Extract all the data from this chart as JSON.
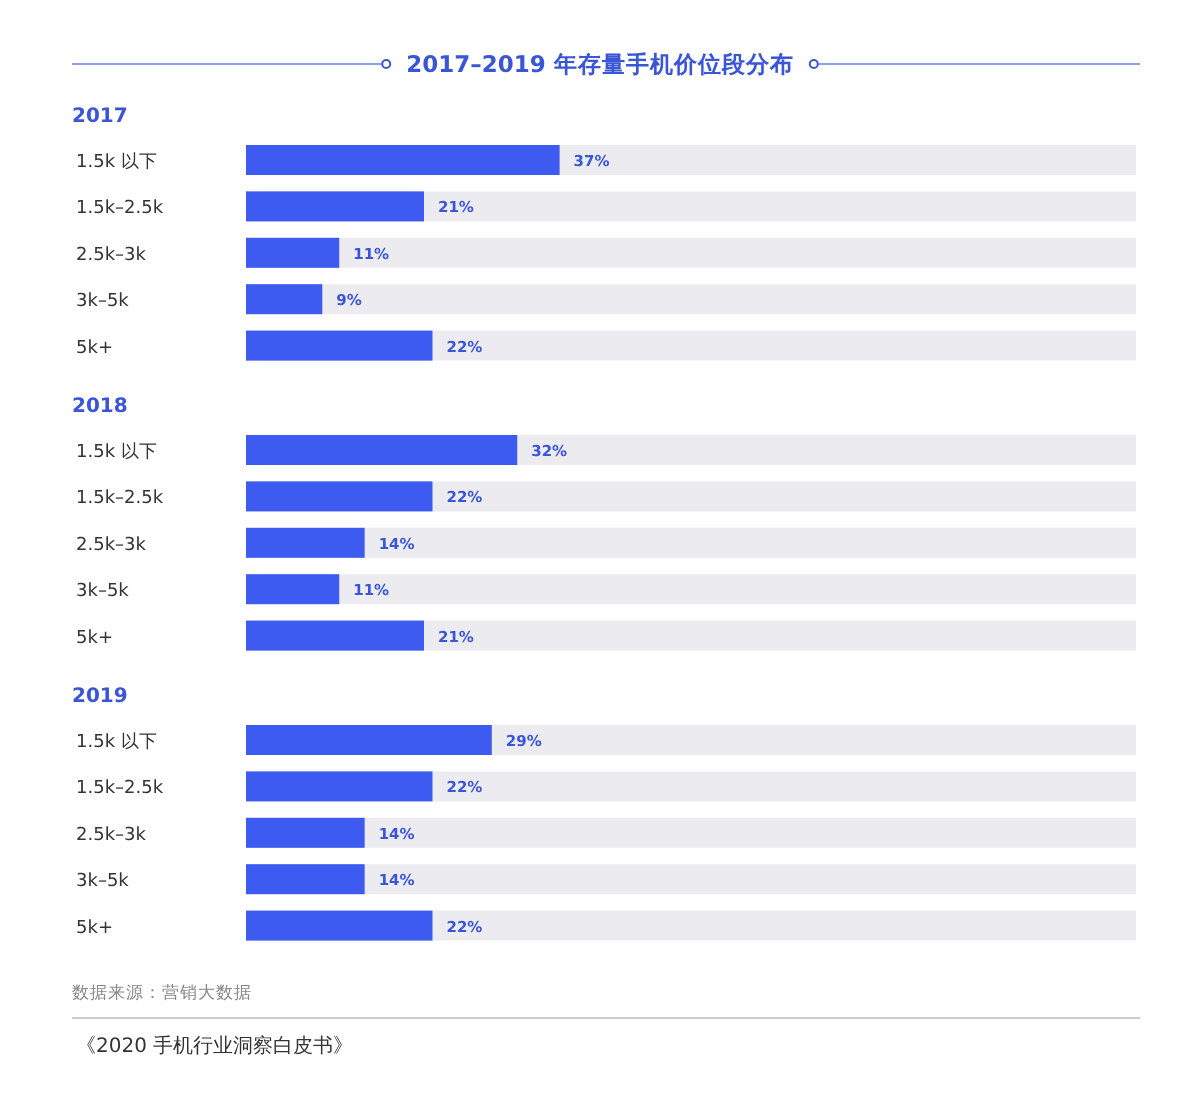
{
  "chart_data": [
    {
      "type": "bar",
      "orientation": "horizontal",
      "title": "2017–2019 年存量手机价位段分布",
      "subtitle": "2017",
      "categories": [
        "1.5k 以下",
        "1.5k–2.5k",
        "2.5k–3k",
        "3k–5k",
        "5k+"
      ],
      "values": [
        37,
        21,
        11,
        9,
        22
      ],
      "value_labels": [
        "37%",
        "21%",
        "11%",
        "9%",
        "22%"
      ],
      "color": "#3d5af1"
    },
    {
      "type": "bar",
      "orientation": "horizontal",
      "subtitle": "2018",
      "categories": [
        "1.5k 以下",
        "1.5k–2.5k",
        "2.5k–3k",
        "3k–5k",
        "5k+"
      ],
      "values": [
        32,
        22,
        14,
        11,
        21
      ],
      "value_labels": [
        "32%",
        "22%",
        "14%",
        "11%",
        "21%"
      ],
      "color": "#3d5af1"
    },
    {
      "type": "bar",
      "orientation": "horizontal",
      "subtitle": "2019",
      "categories": [
        "1.5k 以下",
        "1.5k–2.5k",
        "2.5k–3k",
        "3k–5k",
        "5k+"
      ],
      "values": [
        29,
        22,
        14,
        14,
        22
      ],
      "value_labels": [
        "29%",
        "22%",
        "14%",
        "14%",
        "22%"
      ],
      "color": "#3d5af1",
      "annotations": [
        "数据来源：营销大数据",
        "《2020 手机行业洞察白皮书》"
      ]
    }
  ]
}
